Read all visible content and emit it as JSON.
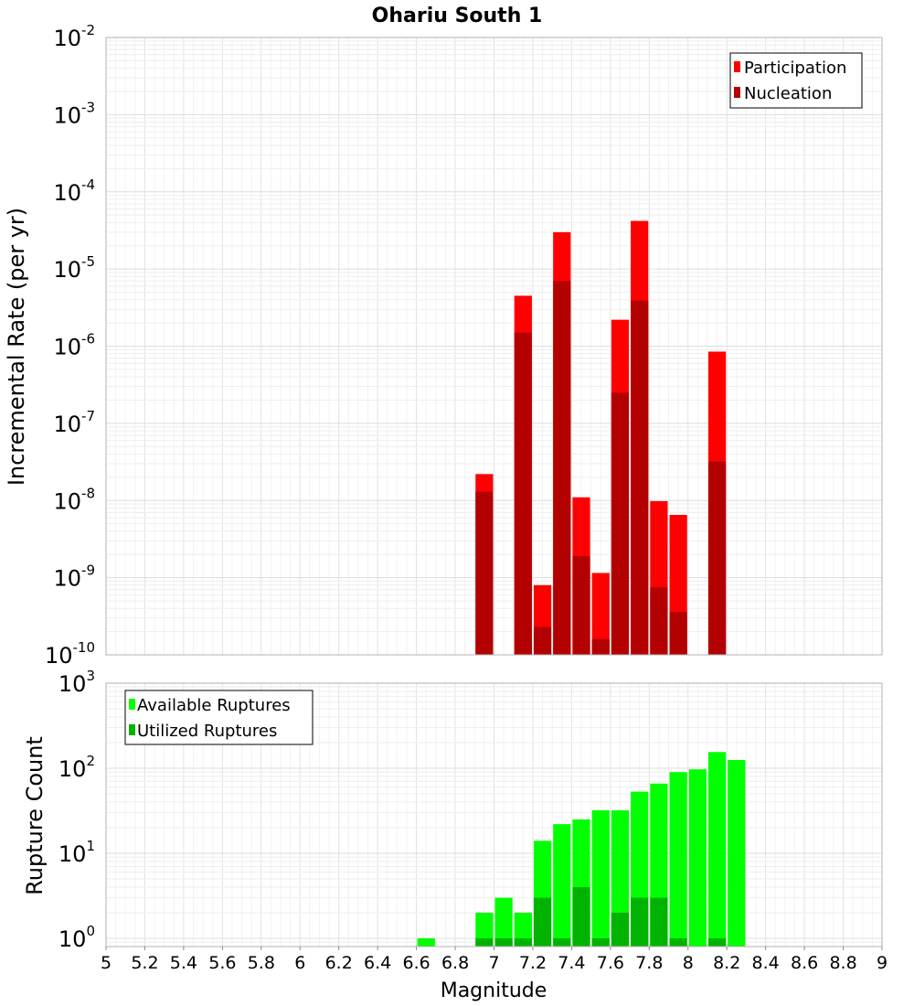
{
  "chart_data": [
    {
      "type": "bar",
      "title": "Ohariu South 1",
      "ylabel": "Incremental Rate (per yr)",
      "yscale": "log",
      "ylim": [
        1e-10,
        0.01
      ],
      "xlim": [
        5,
        9
      ],
      "y_tick_labels": [
        {
          "base": "10",
          "exp": "-10",
          "value": 1e-10
        },
        {
          "base": "10",
          "exp": "-9",
          "value": 1e-09
        },
        {
          "base": "10",
          "exp": "-8",
          "value": 1e-08
        },
        {
          "base": "10",
          "exp": "-7",
          "value": 1e-07
        },
        {
          "base": "10",
          "exp": "-6",
          "value": 1e-06
        },
        {
          "base": "10",
          "exp": "-5",
          "value": 1e-05
        },
        {
          "base": "10",
          "exp": "-4",
          "value": 0.0001
        },
        {
          "base": "10",
          "exp": "-3",
          "value": 0.001
        },
        {
          "base": "10",
          "exp": "-2",
          "value": 0.01
        }
      ],
      "legend_position": "top-right",
      "grid": true,
      "series": [
        {
          "name": "Participation",
          "color": "#ff0000",
          "points": [
            {
              "x": 6.95,
              "y": 2.2e-08
            },
            {
              "x": 7.15,
              "y": 4.5e-06
            },
            {
              "x": 7.25,
              "y": 8e-10
            },
            {
              "x": 7.35,
              "y": 3e-05
            },
            {
              "x": 7.45,
              "y": 1.1e-08
            },
            {
              "x": 7.55,
              "y": 1.15e-09
            },
            {
              "x": 7.65,
              "y": 2.2e-06
            },
            {
              "x": 7.75,
              "y": 4.2e-05
            },
            {
              "x": 7.85,
              "y": 9.8e-09
            },
            {
              "x": 7.95,
              "y": 6.5e-09
            },
            {
              "x": 8.15,
              "y": 8.5e-07
            }
          ]
        },
        {
          "name": "Nucleation",
          "color": "#b30000",
          "points": [
            {
              "x": 6.95,
              "y": 1.3e-08
            },
            {
              "x": 7.15,
              "y": 1.5e-06
            },
            {
              "x": 7.25,
              "y": 2.3e-10
            },
            {
              "x": 7.35,
              "y": 7e-06
            },
            {
              "x": 7.45,
              "y": 1.9e-09
            },
            {
              "x": 7.55,
              "y": 1.6e-10
            },
            {
              "x": 7.65,
              "y": 2.5e-07
            },
            {
              "x": 7.75,
              "y": 3.9e-06
            },
            {
              "x": 7.85,
              "y": 7.5e-10
            },
            {
              "x": 7.95,
              "y": 3.6e-10
            },
            {
              "x": 8.15,
              "y": 3.2e-08
            }
          ]
        }
      ]
    },
    {
      "type": "bar",
      "xlabel": "Magnitude",
      "ylabel": "Rupture Count",
      "yscale": "log",
      "ylim": [
        0.8,
        1000
      ],
      "xlim": [
        5,
        9
      ],
      "x_tick_labels": [
        "5",
        "5.2",
        "5.4",
        "5.6",
        "5.8",
        "6",
        "6.2",
        "6.4",
        "6.6",
        "6.8",
        "7",
        "7.2",
        "7.4",
        "7.6",
        "7.8",
        "8",
        "8.2",
        "8.4",
        "8.6",
        "8.8",
        "9"
      ],
      "y_tick_labels": [
        {
          "base": "10",
          "exp": "0",
          "value": 1
        },
        {
          "base": "10",
          "exp": "1",
          "value": 10
        },
        {
          "base": "10",
          "exp": "2",
          "value": 100
        },
        {
          "base": "10",
          "exp": "3",
          "value": 1000
        }
      ],
      "legend_position": "top-left",
      "grid": true,
      "series": [
        {
          "name": "Available Ruptures",
          "color": "#00ff00",
          "points": [
            {
              "x": 6.65,
              "y": 1
            },
            {
              "x": 6.95,
              "y": 2
            },
            {
              "x": 7.05,
              "y": 3
            },
            {
              "x": 7.15,
              "y": 2
            },
            {
              "x": 7.25,
              "y": 14
            },
            {
              "x": 7.35,
              "y": 22
            },
            {
              "x": 7.45,
              "y": 25
            },
            {
              "x": 7.55,
              "y": 32
            },
            {
              "x": 7.65,
              "y": 32
            },
            {
              "x": 7.75,
              "y": 53
            },
            {
              "x": 7.85,
              "y": 66
            },
            {
              "x": 7.95,
              "y": 90
            },
            {
              "x": 8.05,
              "y": 97
            },
            {
              "x": 8.15,
              "y": 155
            },
            {
              "x": 8.25,
              "y": 125
            }
          ]
        },
        {
          "name": "Utilized Ruptures",
          "color": "#00b300",
          "points": [
            {
              "x": 6.95,
              "y": 1
            },
            {
              "x": 7.05,
              "y": 1
            },
            {
              "x": 7.15,
              "y": 1
            },
            {
              "x": 7.25,
              "y": 3
            },
            {
              "x": 7.35,
              "y": 1
            },
            {
              "x": 7.45,
              "y": 4
            },
            {
              "x": 7.55,
              "y": 1
            },
            {
              "x": 7.65,
              "y": 2
            },
            {
              "x": 7.75,
              "y": 3
            },
            {
              "x": 7.85,
              "y": 3
            },
            {
              "x": 7.95,
              "y": 1
            },
            {
              "x": 8.15,
              "y": 1
            }
          ]
        }
      ]
    }
  ]
}
